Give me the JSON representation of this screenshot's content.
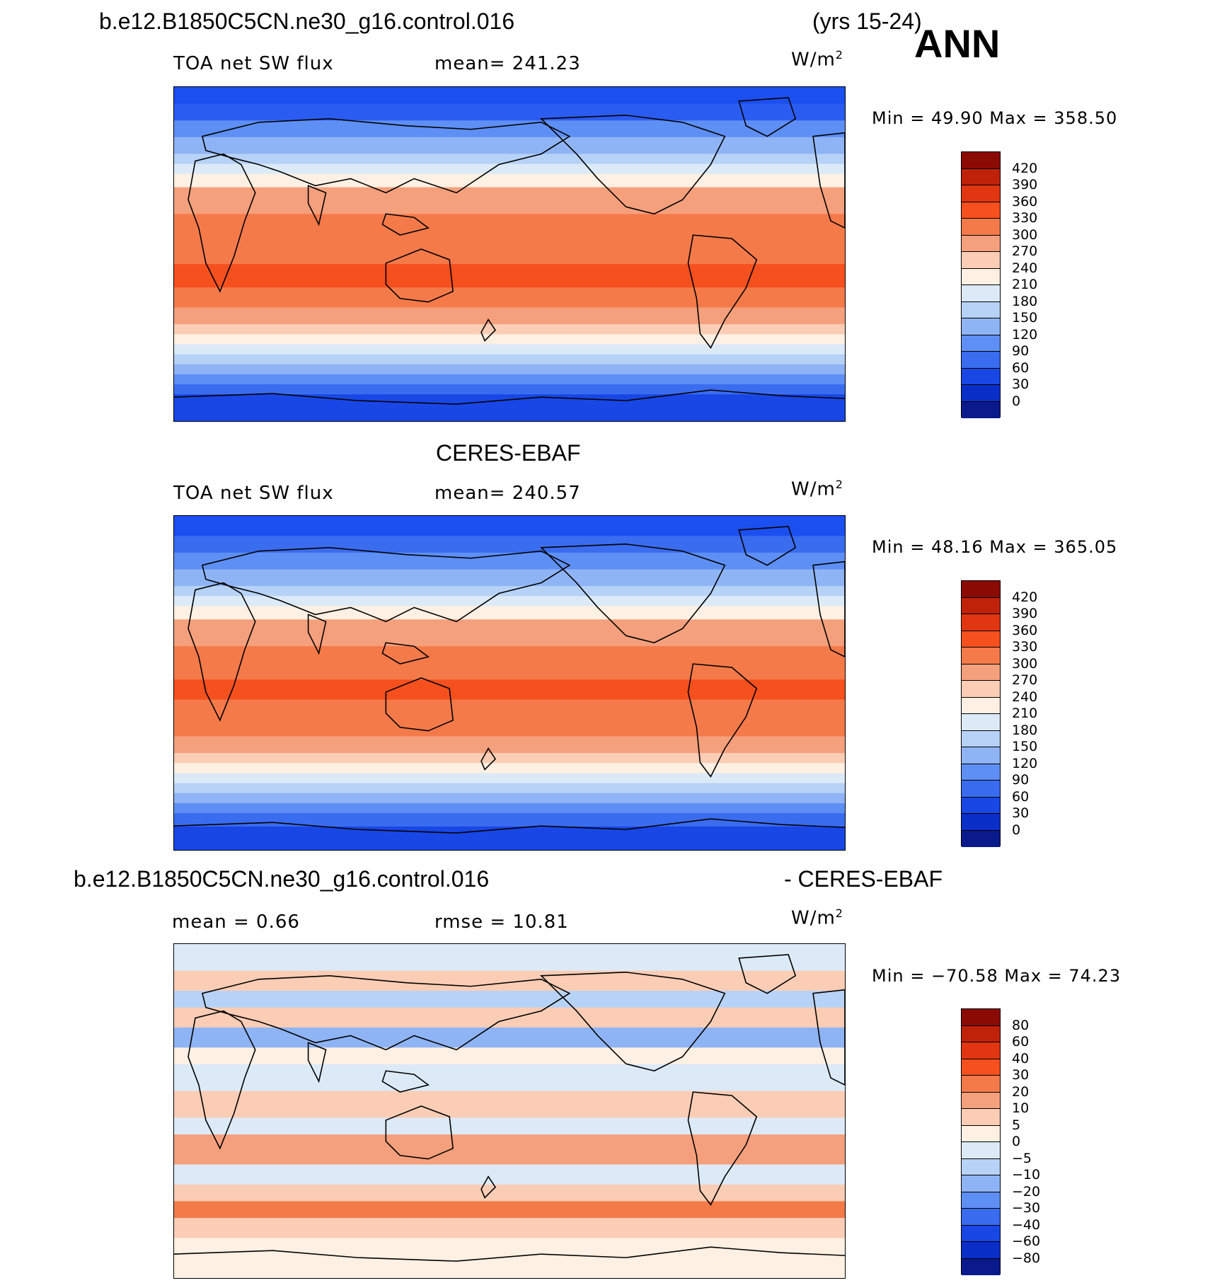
{
  "header": {
    "case_name": "b.e12.B1850C5CN.ne30_g16.control.016",
    "years": "(yrs 15-24)",
    "season": "ANN"
  },
  "panels": [
    {
      "id": "model",
      "title": "",
      "field": "TOA net SW flux",
      "stat1": "mean=  241.23",
      "units": "W/m",
      "units_exp": "2",
      "minmax": "Min =   49.90  Max  =  358.50",
      "colorbar": {
        "labels": [
          "420",
          "390",
          "360",
          "330",
          "300",
          "270",
          "240",
          "210",
          "180",
          "150",
          "120",
          "90",
          "60",
          "30",
          "0"
        ],
        "colors": [
          "#8B0A04",
          "#BF2208",
          "#E03712",
          "#F5501D",
          "#F57A4A",
          "#F5A07C",
          "#FBCDB5",
          "#FEF0E2",
          "#DCEAF8",
          "#B7D2F7",
          "#8FB4F5",
          "#5E8FF5",
          "#3A6CF0",
          "#1847E5",
          "#0A2FC9",
          "#0A1A8C"
        ],
        "bands": [
          {
            "c": "#1C4FF0",
            "rows": [
              0.0,
              0.05
            ]
          },
          {
            "c": "#2B5CF2",
            "rows": [
              0.05,
              0.1
            ]
          },
          {
            "c": "#5E8FF5",
            "rows": [
              0.1,
              0.15
            ]
          },
          {
            "c": "#8FB4F5",
            "rows": [
              0.15,
              0.2
            ]
          },
          {
            "c": "#B7D2F7",
            "rows": [
              0.2,
              0.23
            ]
          },
          {
            "c": "#DCEAF8",
            "rows": [
              0.23,
              0.26
            ]
          },
          {
            "c": "#FEF0E2",
            "rows": [
              0.26,
              0.3
            ]
          },
          {
            "c": "#F5A07C",
            "rows": [
              0.3,
              0.38
            ]
          },
          {
            "c": "#F57A4A",
            "rows": [
              0.38,
              0.53
            ]
          },
          {
            "c": "#F5501D",
            "rows": [
              0.53,
              0.6
            ]
          },
          {
            "c": "#F57A4A",
            "rows": [
              0.6,
              0.66
            ]
          },
          {
            "c": "#F5A07C",
            "rows": [
              0.66,
              0.71
            ]
          },
          {
            "c": "#FBCDB5",
            "rows": [
              0.71,
              0.74
            ]
          },
          {
            "c": "#FEF0E2",
            "rows": [
              0.74,
              0.77
            ]
          },
          {
            "c": "#DCEAF8",
            "rows": [
              0.77,
              0.8
            ]
          },
          {
            "c": "#B7D2F7",
            "rows": [
              0.8,
              0.83
            ]
          },
          {
            "c": "#8FB4F5",
            "rows": [
              0.83,
              0.86
            ]
          },
          {
            "c": "#5E8FF5",
            "rows": [
              0.86,
              0.89
            ]
          },
          {
            "c": "#3A6CF0",
            "rows": [
              0.89,
              0.92
            ]
          },
          {
            "c": "#1847E5",
            "rows": [
              0.92,
              1.0
            ]
          }
        ]
      }
    },
    {
      "id": "obs",
      "title": "CERES-EBAF",
      "field": "TOA net SW flux",
      "stat1": "mean=  240.57",
      "units": "W/m",
      "units_exp": "2",
      "minmax": "Min =   48.16  Max  =  365.05",
      "colorbar": {
        "labels": [
          "420",
          "390",
          "360",
          "330",
          "300",
          "270",
          "240",
          "210",
          "180",
          "150",
          "120",
          "90",
          "60",
          "30",
          "0"
        ],
        "colors": [
          "#8B0A04",
          "#BF2208",
          "#E03712",
          "#F5501D",
          "#F57A4A",
          "#F5A07C",
          "#FBCDB5",
          "#FEF0E2",
          "#DCEAF8",
          "#B7D2F7",
          "#8FB4F5",
          "#5E8FF5",
          "#3A6CF0",
          "#1847E5",
          "#0A2FC9",
          "#0A1A8C"
        ],
        "bands": [
          {
            "c": "#1C4FF0",
            "rows": [
              0.0,
              0.06
            ]
          },
          {
            "c": "#3A6CF0",
            "rows": [
              0.06,
              0.11
            ]
          },
          {
            "c": "#5E8FF5",
            "rows": [
              0.11,
              0.16
            ]
          },
          {
            "c": "#8FB4F5",
            "rows": [
              0.16,
              0.21
            ]
          },
          {
            "c": "#B7D2F7",
            "rows": [
              0.21,
              0.24
            ]
          },
          {
            "c": "#DCEAF8",
            "rows": [
              0.24,
              0.27
            ]
          },
          {
            "c": "#FEF0E2",
            "rows": [
              0.27,
              0.31
            ]
          },
          {
            "c": "#F5A07C",
            "rows": [
              0.31,
              0.39
            ]
          },
          {
            "c": "#F57A4A",
            "rows": [
              0.39,
              0.49
            ]
          },
          {
            "c": "#F5501D",
            "rows": [
              0.49,
              0.55
            ]
          },
          {
            "c": "#F57A4A",
            "rows": [
              0.55,
              0.66
            ]
          },
          {
            "c": "#F5A07C",
            "rows": [
              0.66,
              0.71
            ]
          },
          {
            "c": "#FBCDB5",
            "rows": [
              0.71,
              0.74
            ]
          },
          {
            "c": "#FEF0E2",
            "rows": [
              0.74,
              0.77
            ]
          },
          {
            "c": "#DCEAF8",
            "rows": [
              0.77,
              0.8
            ]
          },
          {
            "c": "#B7D2F7",
            "rows": [
              0.8,
              0.83
            ]
          },
          {
            "c": "#8FB4F5",
            "rows": [
              0.83,
              0.86
            ]
          },
          {
            "c": "#5E8FF5",
            "rows": [
              0.86,
              0.89
            ]
          },
          {
            "c": "#3A6CF0",
            "rows": [
              0.89,
              0.93
            ]
          },
          {
            "c": "#1847E5",
            "rows": [
              0.93,
              1.0
            ]
          }
        ]
      }
    },
    {
      "id": "diff",
      "title": "b.e12.B1850C5CN.ne30_g16.control.016",
      "title_right": "- CERES-EBAF",
      "field": "mean =     0.66",
      "stat1": "rmse =    10.81",
      "units": "W/m",
      "units_exp": "2",
      "minmax": "Min = −70.58  Max  =    74.23",
      "colorbar": {
        "labels": [
          "80",
          "60",
          "40",
          "30",
          "20",
          "10",
          "5",
          "0",
          "−5",
          "−10",
          "−20",
          "−30",
          "−40",
          "−60",
          "−80"
        ],
        "colors": [
          "#8B0A04",
          "#BF2208",
          "#E03712",
          "#F5501D",
          "#F57A4A",
          "#F5A07C",
          "#FBCDB5",
          "#FEF0E2",
          "#DCEAF8",
          "#B7D2F7",
          "#8FB4F5",
          "#5E8FF5",
          "#3A6CF0",
          "#1847E5",
          "#0A2FC9",
          "#0A1A8C"
        ],
        "bands": [
          {
            "c": "#DCEAF8",
            "rows": [
              0.0,
              0.08
            ]
          },
          {
            "c": "#FBCDB5",
            "rows": [
              0.08,
              0.14
            ]
          },
          {
            "c": "#B7D2F7",
            "rows": [
              0.14,
              0.19
            ]
          },
          {
            "c": "#FBCDB5",
            "rows": [
              0.19,
              0.25
            ]
          },
          {
            "c": "#8FB4F5",
            "rows": [
              0.25,
              0.31
            ]
          },
          {
            "c": "#FEF0E2",
            "rows": [
              0.31,
              0.36
            ]
          },
          {
            "c": "#DCEAF8",
            "rows": [
              0.36,
              0.44
            ]
          },
          {
            "c": "#FBCDB5",
            "rows": [
              0.44,
              0.52
            ]
          },
          {
            "c": "#DCEAF8",
            "rows": [
              0.52,
              0.57
            ]
          },
          {
            "c": "#F5A07C",
            "rows": [
              0.57,
              0.66
            ]
          },
          {
            "c": "#DCEAF8",
            "rows": [
              0.66,
              0.72
            ]
          },
          {
            "c": "#FBCDB5",
            "rows": [
              0.72,
              0.77
            ]
          },
          {
            "c": "#F57A4A",
            "rows": [
              0.77,
              0.82
            ]
          },
          {
            "c": "#FBCDB5",
            "rows": [
              0.82,
              0.88
            ]
          },
          {
            "c": "#FEF0E2",
            "rows": [
              0.88,
              1.0
            ]
          }
        ]
      }
    }
  ]
}
